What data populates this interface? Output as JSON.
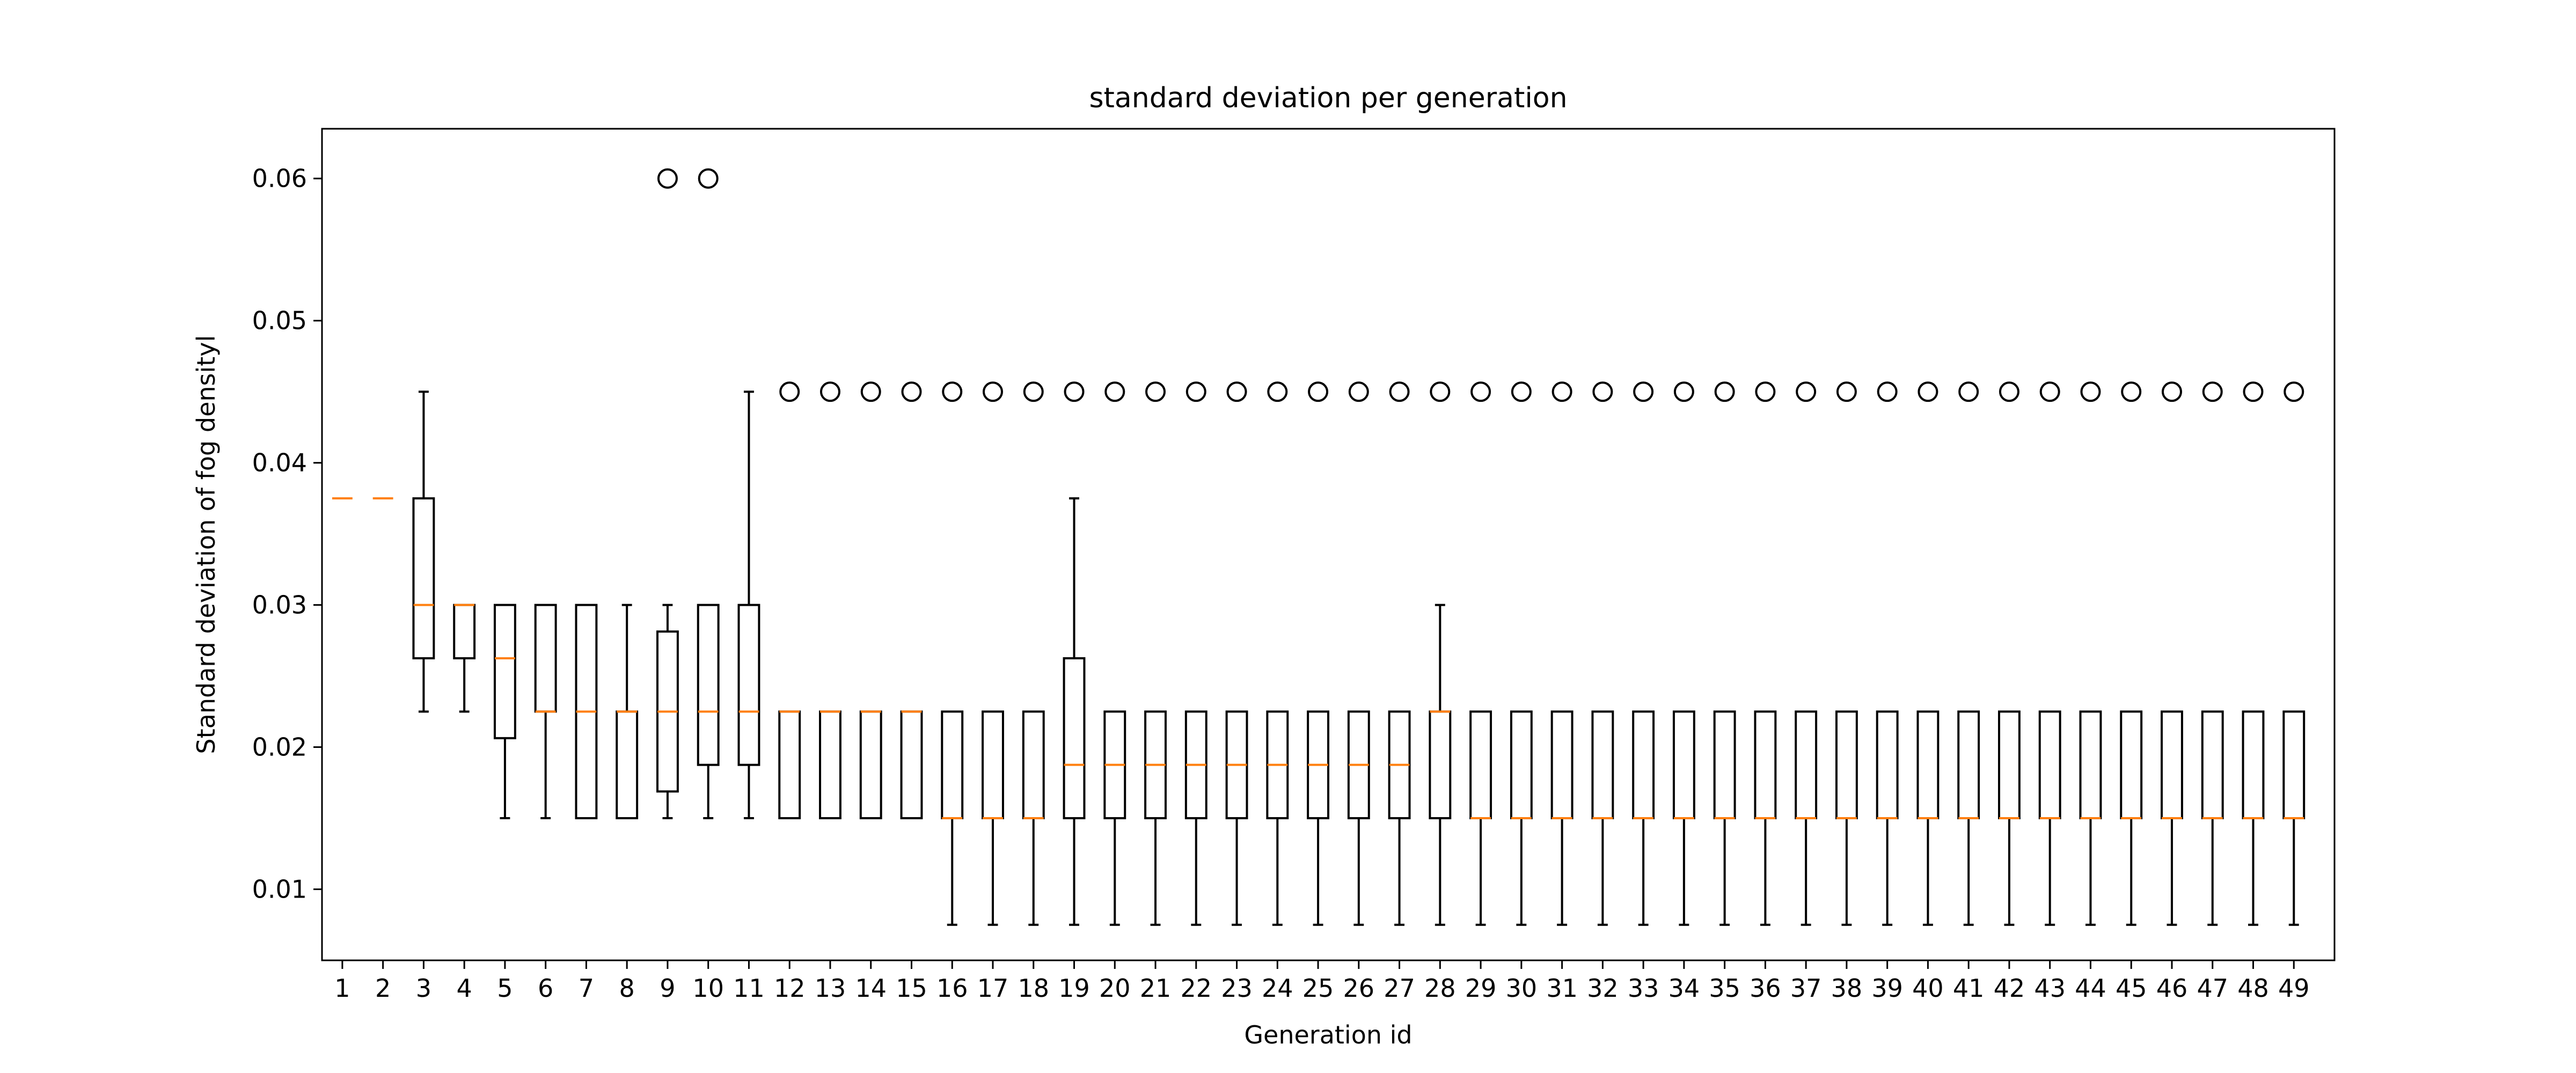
{
  "chart_data": {
    "type": "box",
    "title": "standard deviation per generation",
    "xlabel": "Generation id",
    "ylabel": "Standard deviation of fog densityl",
    "ylim": [
      0.005,
      0.0635
    ],
    "yticks": [
      0.01,
      0.02,
      0.03,
      0.04,
      0.05,
      0.06
    ],
    "ytick_labels": [
      "0.01",
      "0.02",
      "0.03",
      "0.04",
      "0.05",
      "0.06"
    ],
    "grid": false,
    "colors": {
      "box": "#000000",
      "median": "#ff7f0e",
      "whisker": "#000000",
      "flier": "#000000"
    },
    "categories": [
      "1",
      "2",
      "3",
      "4",
      "5",
      "6",
      "7",
      "8",
      "9",
      "10",
      "11",
      "12",
      "13",
      "14",
      "15",
      "16",
      "17",
      "18",
      "19",
      "20",
      "21",
      "22",
      "23",
      "24",
      "25",
      "26",
      "27",
      "28",
      "29",
      "30",
      "31",
      "32",
      "33",
      "34",
      "35",
      "36",
      "37",
      "38",
      "39",
      "40",
      "41",
      "42",
      "43",
      "44",
      "45",
      "46",
      "47",
      "48",
      "49"
    ],
    "boxes": [
      {
        "whislo": 0.0375,
        "q1": 0.0375,
        "med": 0.0375,
        "q3": 0.0375,
        "whishi": 0.0375,
        "fliers": []
      },
      {
        "whislo": 0.0375,
        "q1": 0.0375,
        "med": 0.0375,
        "q3": 0.0375,
        "whishi": 0.0375,
        "fliers": []
      },
      {
        "whislo": 0.0225,
        "q1": 0.02625,
        "med": 0.03,
        "q3": 0.0375,
        "whishi": 0.045,
        "fliers": []
      },
      {
        "whislo": 0.0225,
        "q1": 0.02625,
        "med": 0.03,
        "q3": 0.03,
        "whishi": 0.03,
        "fliers": []
      },
      {
        "whislo": 0.015,
        "q1": 0.02063,
        "med": 0.02625,
        "q3": 0.03,
        "whishi": 0.03,
        "fliers": []
      },
      {
        "whislo": 0.015,
        "q1": 0.0225,
        "med": 0.0225,
        "q3": 0.03,
        "whishi": 0.03,
        "fliers": []
      },
      {
        "whislo": 0.015,
        "q1": 0.015,
        "med": 0.0225,
        "q3": 0.03,
        "whishi": 0.03,
        "fliers": []
      },
      {
        "whislo": 0.015,
        "q1": 0.015,
        "med": 0.0225,
        "q3": 0.0225,
        "whishi": 0.03,
        "fliers": []
      },
      {
        "whislo": 0.015,
        "q1": 0.01688,
        "med": 0.0225,
        "q3": 0.02813,
        "whishi": 0.03,
        "fliers": [
          0.06
        ]
      },
      {
        "whislo": 0.015,
        "q1": 0.01875,
        "med": 0.0225,
        "q3": 0.03,
        "whishi": 0.03,
        "fliers": [
          0.06
        ]
      },
      {
        "whislo": 0.015,
        "q1": 0.01875,
        "med": 0.0225,
        "q3": 0.03,
        "whishi": 0.045,
        "fliers": []
      },
      {
        "whislo": 0.015,
        "q1": 0.015,
        "med": 0.0225,
        "q3": 0.0225,
        "whishi": 0.0225,
        "fliers": [
          0.045
        ]
      },
      {
        "whislo": 0.015,
        "q1": 0.015,
        "med": 0.0225,
        "q3": 0.0225,
        "whishi": 0.0225,
        "fliers": [
          0.045
        ]
      },
      {
        "whislo": 0.015,
        "q1": 0.015,
        "med": 0.0225,
        "q3": 0.0225,
        "whishi": 0.0225,
        "fliers": [
          0.045
        ]
      },
      {
        "whislo": 0.015,
        "q1": 0.015,
        "med": 0.0225,
        "q3": 0.0225,
        "whishi": 0.0225,
        "fliers": [
          0.045
        ]
      },
      {
        "whislo": 0.0075,
        "q1": 0.015,
        "med": 0.015,
        "q3": 0.0225,
        "whishi": 0.0225,
        "fliers": [
          0.045
        ]
      },
      {
        "whislo": 0.0075,
        "q1": 0.015,
        "med": 0.015,
        "q3": 0.0225,
        "whishi": 0.0225,
        "fliers": [
          0.045
        ]
      },
      {
        "whislo": 0.0075,
        "q1": 0.015,
        "med": 0.015,
        "q3": 0.0225,
        "whishi": 0.0225,
        "fliers": [
          0.045
        ]
      },
      {
        "whislo": 0.0075,
        "q1": 0.015,
        "med": 0.01875,
        "q3": 0.02625,
        "whishi": 0.0375,
        "fliers": [
          0.045
        ]
      },
      {
        "whislo": 0.0075,
        "q1": 0.015,
        "med": 0.01875,
        "q3": 0.0225,
        "whishi": 0.0225,
        "fliers": [
          0.045
        ]
      },
      {
        "whislo": 0.0075,
        "q1": 0.015,
        "med": 0.01875,
        "q3": 0.0225,
        "whishi": 0.0225,
        "fliers": [
          0.045
        ]
      },
      {
        "whislo": 0.0075,
        "q1": 0.015,
        "med": 0.01875,
        "q3": 0.0225,
        "whishi": 0.0225,
        "fliers": [
          0.045
        ]
      },
      {
        "whislo": 0.0075,
        "q1": 0.015,
        "med": 0.01875,
        "q3": 0.0225,
        "whishi": 0.0225,
        "fliers": [
          0.045
        ]
      },
      {
        "whislo": 0.0075,
        "q1": 0.015,
        "med": 0.01875,
        "q3": 0.0225,
        "whishi": 0.0225,
        "fliers": [
          0.045
        ]
      },
      {
        "whislo": 0.0075,
        "q1": 0.015,
        "med": 0.01875,
        "q3": 0.0225,
        "whishi": 0.0225,
        "fliers": [
          0.045
        ]
      },
      {
        "whislo": 0.0075,
        "q1": 0.015,
        "med": 0.01875,
        "q3": 0.0225,
        "whishi": 0.0225,
        "fliers": [
          0.045
        ]
      },
      {
        "whislo": 0.0075,
        "q1": 0.015,
        "med": 0.01875,
        "q3": 0.0225,
        "whishi": 0.0225,
        "fliers": [
          0.045
        ]
      },
      {
        "whislo": 0.0075,
        "q1": 0.015,
        "med": 0.0225,
        "q3": 0.0225,
        "whishi": 0.03,
        "fliers": [
          0.045
        ]
      },
      {
        "whislo": 0.0075,
        "q1": 0.015,
        "med": 0.015,
        "q3": 0.0225,
        "whishi": 0.0225,
        "fliers": [
          0.045
        ]
      },
      {
        "whislo": 0.0075,
        "q1": 0.015,
        "med": 0.015,
        "q3": 0.0225,
        "whishi": 0.0225,
        "fliers": [
          0.045
        ]
      },
      {
        "whislo": 0.0075,
        "q1": 0.015,
        "med": 0.015,
        "q3": 0.0225,
        "whishi": 0.0225,
        "fliers": [
          0.045
        ]
      },
      {
        "whislo": 0.0075,
        "q1": 0.015,
        "med": 0.015,
        "q3": 0.0225,
        "whishi": 0.0225,
        "fliers": [
          0.045
        ]
      },
      {
        "whislo": 0.0075,
        "q1": 0.015,
        "med": 0.015,
        "q3": 0.0225,
        "whishi": 0.0225,
        "fliers": [
          0.045
        ]
      },
      {
        "whislo": 0.0075,
        "q1": 0.015,
        "med": 0.015,
        "q3": 0.0225,
        "whishi": 0.0225,
        "fliers": [
          0.045
        ]
      },
      {
        "whislo": 0.0075,
        "q1": 0.015,
        "med": 0.015,
        "q3": 0.0225,
        "whishi": 0.0225,
        "fliers": [
          0.045
        ]
      },
      {
        "whislo": 0.0075,
        "q1": 0.015,
        "med": 0.015,
        "q3": 0.0225,
        "whishi": 0.0225,
        "fliers": [
          0.045
        ]
      },
      {
        "whislo": 0.0075,
        "q1": 0.015,
        "med": 0.015,
        "q3": 0.0225,
        "whishi": 0.0225,
        "fliers": [
          0.045
        ]
      },
      {
        "whislo": 0.0075,
        "q1": 0.015,
        "med": 0.015,
        "q3": 0.0225,
        "whishi": 0.0225,
        "fliers": [
          0.045
        ]
      },
      {
        "whislo": 0.0075,
        "q1": 0.015,
        "med": 0.015,
        "q3": 0.0225,
        "whishi": 0.0225,
        "fliers": [
          0.045
        ]
      },
      {
        "whislo": 0.0075,
        "q1": 0.015,
        "med": 0.015,
        "q3": 0.0225,
        "whishi": 0.0225,
        "fliers": [
          0.045
        ]
      },
      {
        "whislo": 0.0075,
        "q1": 0.015,
        "med": 0.015,
        "q3": 0.0225,
        "whishi": 0.0225,
        "fliers": [
          0.045
        ]
      },
      {
        "whislo": 0.0075,
        "q1": 0.015,
        "med": 0.015,
        "q3": 0.0225,
        "whishi": 0.0225,
        "fliers": [
          0.045
        ]
      },
      {
        "whislo": 0.0075,
        "q1": 0.015,
        "med": 0.015,
        "q3": 0.0225,
        "whishi": 0.0225,
        "fliers": [
          0.045
        ]
      },
      {
        "whislo": 0.0075,
        "q1": 0.015,
        "med": 0.015,
        "q3": 0.0225,
        "whishi": 0.0225,
        "fliers": [
          0.045
        ]
      },
      {
        "whislo": 0.0075,
        "q1": 0.015,
        "med": 0.015,
        "q3": 0.0225,
        "whishi": 0.0225,
        "fliers": [
          0.045
        ]
      },
      {
        "whislo": 0.0075,
        "q1": 0.015,
        "med": 0.015,
        "q3": 0.0225,
        "whishi": 0.0225,
        "fliers": [
          0.045
        ]
      },
      {
        "whislo": 0.0075,
        "q1": 0.015,
        "med": 0.015,
        "q3": 0.0225,
        "whishi": 0.0225,
        "fliers": [
          0.045
        ]
      },
      {
        "whislo": 0.0075,
        "q1": 0.015,
        "med": 0.015,
        "q3": 0.0225,
        "whishi": 0.0225,
        "fliers": [
          0.045
        ]
      },
      {
        "whislo": 0.0075,
        "q1": 0.015,
        "med": 0.015,
        "q3": 0.0225,
        "whishi": 0.0225,
        "fliers": [
          0.045
        ]
      }
    ]
  }
}
